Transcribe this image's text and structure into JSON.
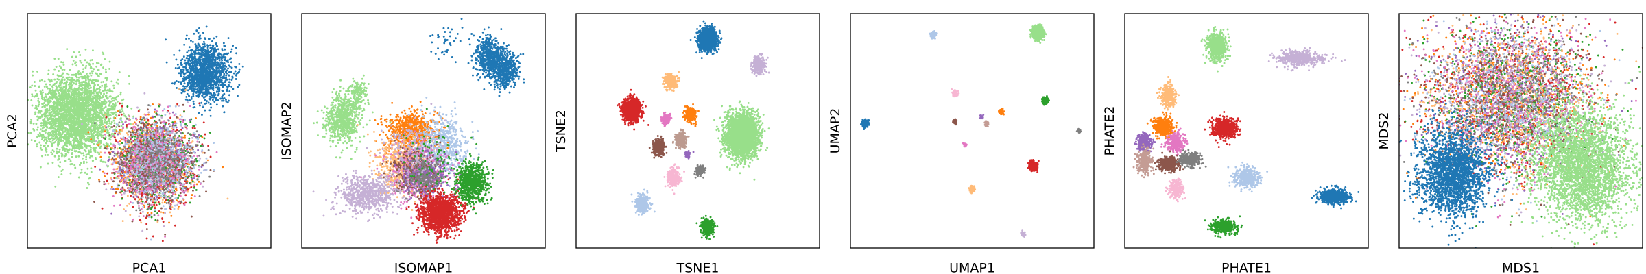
{
  "chart_data": [
    {
      "type": "scatter",
      "xlabel": "PCA1",
      "ylabel": "PCA2",
      "xlim": [
        0,
        100
      ],
      "ylim": [
        0,
        100
      ],
      "ticks": "none",
      "clusters": [
        {
          "color": "#98df8a",
          "x": 20,
          "y": 57,
          "sx": 8,
          "sy": 9,
          "n": 3000
        },
        {
          "color": "#1f77b4",
          "x": 73,
          "y": 75,
          "sx": 5,
          "sy": 6,
          "n": 1400
        },
        {
          "color": "#ff7f0e",
          "x": 52,
          "y": 37,
          "sx": 8,
          "sy": 9,
          "n": 500
        },
        {
          "color": "#ffbb78",
          "x": 51,
          "y": 37,
          "sx": 8,
          "sy": 9,
          "n": 450
        },
        {
          "color": "#d62728",
          "x": 52,
          "y": 35,
          "sx": 8,
          "sy": 10,
          "n": 500
        },
        {
          "color": "#2ca02c",
          "x": 54,
          "y": 37,
          "sx": 8,
          "sy": 9,
          "n": 400
        },
        {
          "color": "#9467bd",
          "x": 53,
          "y": 38,
          "sx": 8,
          "sy": 8,
          "n": 350
        },
        {
          "color": "#c5b0d5",
          "x": 52,
          "y": 36,
          "sx": 8,
          "sy": 9,
          "n": 400
        },
        {
          "color": "#8c564b",
          "x": 52,
          "y": 37,
          "sx": 8,
          "sy": 9,
          "n": 400
        },
        {
          "color": "#e377c2",
          "x": 52,
          "y": 37,
          "sx": 8,
          "sy": 9,
          "n": 450
        },
        {
          "color": "#aec7e8",
          "x": 54,
          "y": 38,
          "sx": 8,
          "sy": 9,
          "n": 400
        },
        {
          "color": "#7f7f7f",
          "x": 53,
          "y": 37,
          "sx": 8,
          "sy": 9,
          "n": 350
        }
      ]
    },
    {
      "type": "scatter",
      "xlabel": "ISOMAP1",
      "ylabel": "ISOMAP2",
      "xlim": [
        0,
        100
      ],
      "ylim": [
        0,
        100
      ],
      "ticks": "none",
      "clusters": [
        {
          "color": "#98df8a",
          "x": 17,
          "y": 55,
          "sx": 3.5,
          "sy": 5,
          "n": 700
        },
        {
          "color": "#98df8a",
          "x": 23,
          "y": 66,
          "sx": 2,
          "sy": 3,
          "n": 150
        },
        {
          "color": "#1f77b4",
          "x": 77,
          "y": 82,
          "sx": 3,
          "sy": 4,
          "n": 500
        },
        {
          "color": "#1f77b4",
          "x": 83,
          "y": 76,
          "sx": 3,
          "sy": 4,
          "n": 500
        },
        {
          "color": "#1f77b4",
          "x": 59,
          "y": 88,
          "sx": 4,
          "sy": 4,
          "n": 40
        },
        {
          "color": "#ff7f0e",
          "x": 45,
          "y": 50,
          "sx": 5,
          "sy": 4,
          "n": 700
        },
        {
          "color": "#ffbb78",
          "x": 42,
          "y": 36,
          "sx": 6,
          "sy": 6,
          "n": 600
        },
        {
          "color": "#aec7e8",
          "x": 58,
          "y": 43,
          "sx": 5,
          "sy": 7,
          "n": 600
        },
        {
          "color": "#e377c2",
          "x": 48,
          "y": 32,
          "sx": 6,
          "sy": 6,
          "n": 500
        },
        {
          "color": "#8c564b",
          "x": 47,
          "y": 33,
          "sx": 5,
          "sy": 5,
          "n": 300
        },
        {
          "color": "#9467bd",
          "x": 51,
          "y": 31,
          "sx": 5,
          "sy": 5,
          "n": 250
        },
        {
          "color": "#7f7f7f",
          "x": 50,
          "y": 30,
          "sx": 4,
          "sy": 4,
          "n": 200
        },
        {
          "color": "#c5b0d5",
          "x": 27,
          "y": 23,
          "sx": 6,
          "sy": 4,
          "n": 700
        },
        {
          "color": "#c5b0d5",
          "x": 45,
          "y": 42,
          "sx": 6,
          "sy": 6,
          "n": 150
        },
        {
          "color": "#d62728",
          "x": 57,
          "y": 15,
          "sx": 4,
          "sy": 4,
          "n": 1400
        },
        {
          "color": "#2ca02c",
          "x": 70,
          "y": 28,
          "sx": 3,
          "sy": 4,
          "n": 800
        },
        {
          "color": "#2ca02c",
          "x": 55,
          "y": 38,
          "sx": 7,
          "sy": 7,
          "n": 80
        }
      ]
    },
    {
      "type": "scatter",
      "xlabel": "TSNE1",
      "ylabel": "TSNE2",
      "xlim": [
        0,
        100
      ],
      "ylim": [
        0,
        100
      ],
      "ticks": "none",
      "clusters": [
        {
          "color": "#1f77b4",
          "x": 54,
          "y": 89,
          "sx": 1.8,
          "sy": 2.4,
          "n": 1400
        },
        {
          "color": "#c5b0d5",
          "x": 75,
          "y": 78,
          "sx": 1.2,
          "sy": 1.6,
          "n": 350
        },
        {
          "color": "#ffbb78",
          "x": 39,
          "y": 71,
          "sx": 1.2,
          "sy": 1.6,
          "n": 350
        },
        {
          "color": "#d62728",
          "x": 23,
          "y": 59,
          "sx": 1.8,
          "sy": 2.4,
          "n": 1100
        },
        {
          "color": "#ff7f0e",
          "x": 47,
          "y": 57,
          "sx": 1.1,
          "sy": 1.5,
          "n": 300
        },
        {
          "color": "#e377c2",
          "x": 37,
          "y": 55,
          "sx": 0.8,
          "sy": 1.0,
          "n": 150
        },
        {
          "color": "#98df8a",
          "x": 68,
          "y": 48,
          "sx": 3.2,
          "sy": 4.5,
          "n": 3000
        },
        {
          "color": "#bc9a8f",
          "x": 43,
          "y": 46,
          "sx": 1.1,
          "sy": 1.5,
          "n": 280
        },
        {
          "color": "#8c564b",
          "x": 34,
          "y": 43,
          "sx": 1.2,
          "sy": 1.7,
          "n": 300
        },
        {
          "color": "#9467bd",
          "x": 46,
          "y": 40,
          "sx": 0.6,
          "sy": 0.7,
          "n": 60
        },
        {
          "color": "#7f7f7f",
          "x": 51,
          "y": 33,
          "sx": 0.9,
          "sy": 1.2,
          "n": 150
        },
        {
          "color": "#f7b6d2",
          "x": 40,
          "y": 30,
          "sx": 1.2,
          "sy": 1.7,
          "n": 350
        },
        {
          "color": "#aec7e8",
          "x": 27,
          "y": 19,
          "sx": 1.3,
          "sy": 1.9,
          "n": 450
        },
        {
          "color": "#2ca02c",
          "x": 54,
          "y": 9,
          "sx": 1.2,
          "sy": 1.6,
          "n": 500
        }
      ]
    },
    {
      "type": "scatter",
      "xlabel": "UMAP1",
      "ylabel": "UMAP2",
      "xlim": [
        0,
        100
      ],
      "ylim": [
        0,
        100
      ],
      "ticks": "none",
      "clusters": [
        {
          "color": "#98df8a",
          "x": 77,
          "y": 92,
          "sx": 1.0,
          "sy": 1.2,
          "n": 1200
        },
        {
          "color": "#aec7e8",
          "x": 34,
          "y": 91,
          "sx": 0.5,
          "sy": 0.7,
          "n": 120
        },
        {
          "color": "#1f77b4",
          "x": 6,
          "y": 53,
          "sx": 0.6,
          "sy": 0.8,
          "n": 300
        },
        {
          "color": "#2ca02c",
          "x": 80,
          "y": 63,
          "sx": 0.5,
          "sy": 0.6,
          "n": 180
        },
        {
          "color": "#f7b6d2",
          "x": 43,
          "y": 66,
          "sx": 0.5,
          "sy": 0.6,
          "n": 100
        },
        {
          "color": "#ff7f0e",
          "x": 62,
          "y": 58,
          "sx": 0.4,
          "sy": 0.5,
          "n": 80
        },
        {
          "color": "#9467bd",
          "x": 54,
          "y": 56,
          "sx": 0.3,
          "sy": 0.4,
          "n": 25
        },
        {
          "color": "#c49c94",
          "x": 56,
          "y": 53,
          "sx": 0.4,
          "sy": 0.5,
          "n": 40
        },
        {
          "color": "#8c564b",
          "x": 43,
          "y": 54,
          "sx": 0.4,
          "sy": 0.5,
          "n": 50
        },
        {
          "color": "#7f7f7f",
          "x": 94,
          "y": 50,
          "sx": 0.3,
          "sy": 0.4,
          "n": 40
        },
        {
          "color": "#e377c2",
          "x": 47,
          "y": 44,
          "sx": 0.3,
          "sy": 0.4,
          "n": 30
        },
        {
          "color": "#d62728",
          "x": 75,
          "y": 35,
          "sx": 0.7,
          "sy": 0.9,
          "n": 400
        },
        {
          "color": "#ffbb78",
          "x": 50,
          "y": 25,
          "sx": 0.5,
          "sy": 0.6,
          "n": 120
        },
        {
          "color": "#c5b0d5",
          "x": 71,
          "y": 6,
          "sx": 0.4,
          "sy": 0.5,
          "n": 50
        }
      ]
    },
    {
      "type": "scatter",
      "xlabel": "PHATE1",
      "ylabel": "PHATE2",
      "xlim": [
        0,
        100
      ],
      "ylim": [
        0,
        100
      ],
      "ticks": "none",
      "clusters": [
        {
          "color": "#98df8a",
          "x": 38,
          "y": 86,
          "sx": 2,
          "sy": 3,
          "n": 600
        },
        {
          "color": "#c5b0d5",
          "x": 72,
          "y": 81,
          "sx": 5,
          "sy": 1.5,
          "n": 500
        },
        {
          "color": "#ffbb78",
          "x": 18,
          "y": 65,
          "sx": 1.5,
          "sy": 2.5,
          "n": 300
        },
        {
          "color": "#ff7f0e",
          "x": 16,
          "y": 52,
          "sx": 2,
          "sy": 2,
          "n": 400
        },
        {
          "color": "#d62728",
          "x": 41,
          "y": 51,
          "sx": 2.5,
          "sy": 2,
          "n": 600
        },
        {
          "color": "#9467bd",
          "x": 8,
          "y": 45,
          "sx": 1.5,
          "sy": 2,
          "n": 250
        },
        {
          "color": "#e377c2",
          "x": 21,
          "y": 45,
          "sx": 2,
          "sy": 2,
          "n": 300
        },
        {
          "color": "#c49c94",
          "x": 8,
          "y": 37,
          "sx": 1.5,
          "sy": 2.5,
          "n": 300
        },
        {
          "color": "#8c564b",
          "x": 18,
          "y": 36,
          "sx": 2,
          "sy": 1.5,
          "n": 400
        },
        {
          "color": "#7f7f7f",
          "x": 27,
          "y": 38,
          "sx": 2,
          "sy": 1.5,
          "n": 300
        },
        {
          "color": "#aec7e8",
          "x": 50,
          "y": 30,
          "sx": 2.5,
          "sy": 2,
          "n": 400
        },
        {
          "color": "#f7b6d2",
          "x": 21,
          "y": 25,
          "sx": 1.5,
          "sy": 2,
          "n": 250
        },
        {
          "color": "#1f77b4",
          "x": 86,
          "y": 22,
          "sx": 3,
          "sy": 1.5,
          "n": 600
        },
        {
          "color": "#2ca02c",
          "x": 41,
          "y": 9,
          "sx": 2.5,
          "sy": 1.5,
          "n": 400
        }
      ]
    },
    {
      "type": "scatter",
      "xlabel": "MDS1",
      "ylabel": "MDS2",
      "xlim": [
        0,
        100
      ],
      "ylim": [
        0,
        100
      ],
      "ticks": "none",
      "clusters": [
        {
          "color": "#ff7f0e",
          "x": 45,
          "y": 63,
          "sx": 17,
          "sy": 16,
          "n": 650
        },
        {
          "color": "#d62728",
          "x": 45,
          "y": 63,
          "sx": 17,
          "sy": 16,
          "n": 650
        },
        {
          "color": "#2ca02c",
          "x": 45,
          "y": 63,
          "sx": 17,
          "sy": 16,
          "n": 600
        },
        {
          "color": "#9467bd",
          "x": 45,
          "y": 63,
          "sx": 17,
          "sy": 16,
          "n": 500
        },
        {
          "color": "#8c564b",
          "x": 45,
          "y": 63,
          "sx": 17,
          "sy": 16,
          "n": 500
        },
        {
          "color": "#e377c2",
          "x": 45,
          "y": 63,
          "sx": 17,
          "sy": 16,
          "n": 550
        },
        {
          "color": "#ffbb78",
          "x": 45,
          "y": 63,
          "sx": 17,
          "sy": 16,
          "n": 500
        },
        {
          "color": "#c5b0d5",
          "x": 45,
          "y": 63,
          "sx": 17,
          "sy": 16,
          "n": 500
        },
        {
          "color": "#aec7e8",
          "x": 45,
          "y": 63,
          "sx": 17,
          "sy": 16,
          "n": 500
        },
        {
          "color": "#7f7f7f",
          "x": 45,
          "y": 63,
          "sx": 17,
          "sy": 16,
          "n": 450
        },
        {
          "color": "#1f77b4",
          "x": 22,
          "y": 32,
          "sx": 7,
          "sy": 9,
          "n": 2200
        },
        {
          "color": "#98df8a",
          "x": 75,
          "y": 35,
          "sx": 10,
          "sy": 12,
          "n": 3200
        }
      ]
    }
  ]
}
